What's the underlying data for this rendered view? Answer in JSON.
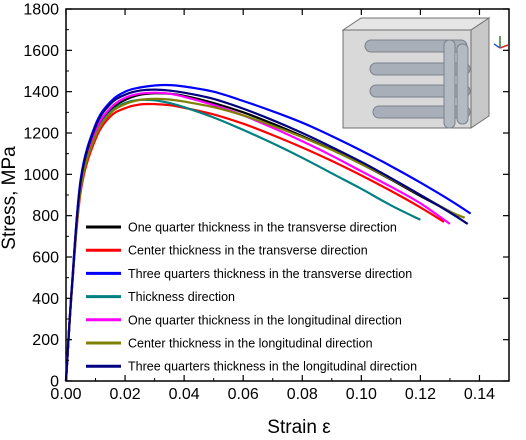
{
  "chart_data": {
    "type": "line",
    "xlabel": "Strain ε",
    "ylabel": "Stress, MPa",
    "xlim": [
      0,
      0.15
    ],
    "ylim": [
      0,
      1800
    ],
    "x_ticks": [
      "0.00",
      "0.02",
      "0.04",
      "0.06",
      "0.08",
      "0.10",
      "0.12",
      "0.14"
    ],
    "y_ticks": [
      "0",
      "200",
      "400",
      "600",
      "800",
      "1000",
      "1200",
      "1400",
      "1600",
      "1800"
    ],
    "legend_position": "bottom-left",
    "grid": false,
    "series": [
      {
        "name": "One quarter thickness in the transverse direction",
        "color": "#000000",
        "points": [
          [
            0,
            0
          ],
          [
            0.002,
            450
          ],
          [
            0.005,
            950
          ],
          [
            0.01,
            1200
          ],
          [
            0.015,
            1310
          ],
          [
            0.02,
            1360
          ],
          [
            0.025,
            1385
          ],
          [
            0.03,
            1392
          ],
          [
            0.035,
            1390
          ],
          [
            0.04,
            1380
          ],
          [
            0.05,
            1345
          ],
          [
            0.06,
            1300
          ],
          [
            0.07,
            1245
          ],
          [
            0.08,
            1185
          ],
          [
            0.09,
            1120
          ],
          [
            0.1,
            1050
          ],
          [
            0.11,
            975
          ],
          [
            0.12,
            895
          ],
          [
            0.13,
            820
          ],
          [
            0.133,
            790
          ]
        ]
      },
      {
        "name": "Center thickness in the transverse direction",
        "color": "#ff0000",
        "points": [
          [
            0,
            0
          ],
          [
            0.002,
            440
          ],
          [
            0.005,
            920
          ],
          [
            0.01,
            1170
          ],
          [
            0.015,
            1280
          ],
          [
            0.02,
            1320
          ],
          [
            0.025,
            1338
          ],
          [
            0.03,
            1340
          ],
          [
            0.035,
            1335
          ],
          [
            0.04,
            1322
          ],
          [
            0.05,
            1290
          ],
          [
            0.06,
            1245
          ],
          [
            0.07,
            1190
          ],
          [
            0.08,
            1130
          ],
          [
            0.09,
            1065
          ],
          [
            0.1,
            995
          ],
          [
            0.11,
            920
          ],
          [
            0.12,
            840
          ],
          [
            0.128,
            770
          ]
        ]
      },
      {
        "name": "Three quarters thickness in the transverse direction",
        "color": "#0000ff",
        "points": [
          [
            0,
            0
          ],
          [
            0.002,
            460
          ],
          [
            0.005,
            980
          ],
          [
            0.01,
            1240
          ],
          [
            0.015,
            1350
          ],
          [
            0.02,
            1400
          ],
          [
            0.025,
            1420
          ],
          [
            0.03,
            1430
          ],
          [
            0.035,
            1432
          ],
          [
            0.04,
            1425
          ],
          [
            0.05,
            1400
          ],
          [
            0.06,
            1355
          ],
          [
            0.07,
            1305
          ],
          [
            0.08,
            1250
          ],
          [
            0.09,
            1185
          ],
          [
            0.1,
            1115
          ],
          [
            0.11,
            1040
          ],
          [
            0.12,
            960
          ],
          [
            0.13,
            875
          ],
          [
            0.137,
            810
          ]
        ]
      },
      {
        "name": "Thickness direction",
        "color": "#008080",
        "points": [
          [
            0,
            0
          ],
          [
            0.002,
            450
          ],
          [
            0.005,
            940
          ],
          [
            0.01,
            1190
          ],
          [
            0.015,
            1300
          ],
          [
            0.02,
            1345
          ],
          [
            0.025,
            1360
          ],
          [
            0.03,
            1358
          ],
          [
            0.035,
            1345
          ],
          [
            0.04,
            1325
          ],
          [
            0.05,
            1275
          ],
          [
            0.06,
            1215
          ],
          [
            0.07,
            1150
          ],
          [
            0.08,
            1080
          ],
          [
            0.09,
            1005
          ],
          [
            0.1,
            930
          ],
          [
            0.11,
            850
          ],
          [
            0.12,
            780
          ]
        ]
      },
      {
        "name": "One quarter thickness in the longitudinal direction",
        "color": "#ff00ff",
        "points": [
          [
            0,
            0
          ],
          [
            0.002,
            450
          ],
          [
            0.005,
            950
          ],
          [
            0.01,
            1210
          ],
          [
            0.015,
            1320
          ],
          [
            0.02,
            1370
          ],
          [
            0.025,
            1390
          ],
          [
            0.03,
            1395
          ],
          [
            0.035,
            1390
          ],
          [
            0.04,
            1375
          ],
          [
            0.05,
            1335
          ],
          [
            0.06,
            1285
          ],
          [
            0.07,
            1225
          ],
          [
            0.08,
            1160
          ],
          [
            0.09,
            1090
          ],
          [
            0.1,
            1015
          ],
          [
            0.11,
            940
          ],
          [
            0.12,
            860
          ],
          [
            0.13,
            760
          ]
        ]
      },
      {
        "name": "Center thickness in the longitudinal direction",
        "color": "#808000",
        "points": [
          [
            0,
            0
          ],
          [
            0.002,
            445
          ],
          [
            0.005,
            935
          ],
          [
            0.01,
            1185
          ],
          [
            0.015,
            1295
          ],
          [
            0.02,
            1340
          ],
          [
            0.025,
            1360
          ],
          [
            0.03,
            1365
          ],
          [
            0.035,
            1362
          ],
          [
            0.04,
            1352
          ],
          [
            0.05,
            1325
          ],
          [
            0.06,
            1285
          ],
          [
            0.07,
            1235
          ],
          [
            0.08,
            1180
          ],
          [
            0.09,
            1118
          ],
          [
            0.1,
            1050
          ],
          [
            0.11,
            978
          ],
          [
            0.12,
            900
          ],
          [
            0.13,
            820
          ],
          [
            0.135,
            790
          ]
        ]
      },
      {
        "name": "Three quarters thickness in the longitudinal direction",
        "color": "#000080",
        "points": [
          [
            0,
            0
          ],
          [
            0.002,
            455
          ],
          [
            0.005,
            970
          ],
          [
            0.01,
            1230
          ],
          [
            0.015,
            1340
          ],
          [
            0.02,
            1385
          ],
          [
            0.025,
            1405
          ],
          [
            0.03,
            1410
          ],
          [
            0.035,
            1405
          ],
          [
            0.04,
            1395
          ],
          [
            0.05,
            1365
          ],
          [
            0.06,
            1318
          ],
          [
            0.07,
            1262
          ],
          [
            0.08,
            1200
          ],
          [
            0.09,
            1132
          ],
          [
            0.1,
            1060
          ],
          [
            0.11,
            982
          ],
          [
            0.12,
            900
          ],
          [
            0.13,
            815
          ],
          [
            0.136,
            760
          ]
        ]
      }
    ]
  }
}
